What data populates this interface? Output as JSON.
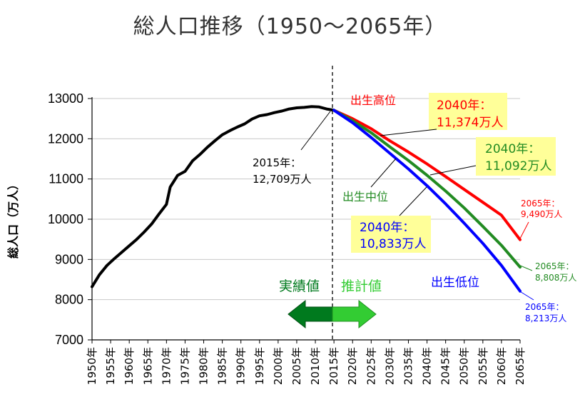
{
  "title": "総人口推移（1950～2065年）",
  "chart_data": {
    "type": "line",
    "title": "総人口推移（1950～2065年）",
    "ylabel": "総人口（万人）",
    "ylim": [
      7000,
      13000
    ],
    "yticks": [
      7000,
      8000,
      9000,
      10000,
      11000,
      12000,
      13000
    ],
    "xticks": [
      "1950年",
      "1955年",
      "1960年",
      "1965年",
      "1970年",
      "1975年",
      "1980年",
      "1985年",
      "1990年",
      "1995年",
      "2000年",
      "2005年",
      "2010年",
      "2015年",
      "2020年",
      "2025年",
      "2030年",
      "2035年",
      "2040年",
      "2045年",
      "2050年",
      "2055年",
      "2060年",
      "2065年"
    ],
    "grid": true,
    "series": [
      {
        "name": "実績値",
        "color": "#000000",
        "points": [
          [
            1950,
            8320
          ],
          [
            1952,
            8620
          ],
          [
            1954,
            8850
          ],
          [
            1956,
            9020
          ],
          [
            1958,
            9180
          ],
          [
            1960,
            9340
          ],
          [
            1962,
            9500
          ],
          [
            1964,
            9680
          ],
          [
            1966,
            9880
          ],
          [
            1968,
            10130
          ],
          [
            1970,
            10370
          ],
          [
            1971,
            10800
          ],
          [
            1973,
            11090
          ],
          [
            1975,
            11190
          ],
          [
            1977,
            11450
          ],
          [
            1979,
            11610
          ],
          [
            1981,
            11790
          ],
          [
            1983,
            11950
          ],
          [
            1985,
            12100
          ],
          [
            1987,
            12200
          ],
          [
            1989,
            12290
          ],
          [
            1991,
            12370
          ],
          [
            1993,
            12490
          ],
          [
            1995,
            12570
          ],
          [
            1997,
            12600
          ],
          [
            1999,
            12650
          ],
          [
            2001,
            12690
          ],
          [
            2003,
            12740
          ],
          [
            2005,
            12770
          ],
          [
            2007,
            12780
          ],
          [
            2009,
            12800
          ],
          [
            2011,
            12790
          ],
          [
            2013,
            12740
          ],
          [
            2015,
            12709
          ]
        ]
      },
      {
        "name": "出生高位",
        "color": "#ff0000",
        "points": [
          [
            2015,
            12709
          ],
          [
            2020,
            12500
          ],
          [
            2025,
            12250
          ],
          [
            2030,
            11950
          ],
          [
            2035,
            11670
          ],
          [
            2040,
            11374
          ],
          [
            2045,
            11060
          ],
          [
            2050,
            10740
          ],
          [
            2055,
            10420
          ],
          [
            2060,
            10100
          ],
          [
            2065,
            9490
          ]
        ]
      },
      {
        "name": "出生中位",
        "color": "#228b22",
        "points": [
          [
            2015,
            12709
          ],
          [
            2020,
            12450
          ],
          [
            2025,
            12150
          ],
          [
            2030,
            11800
          ],
          [
            2035,
            11460
          ],
          [
            2040,
            11092
          ],
          [
            2045,
            10700
          ],
          [
            2050,
            10280
          ],
          [
            2055,
            9820
          ],
          [
            2060,
            9350
          ],
          [
            2065,
            8808
          ]
        ]
      },
      {
        "name": "出生低位",
        "color": "#0000ff",
        "points": [
          [
            2015,
            12709
          ],
          [
            2020,
            12400
          ],
          [
            2025,
            12030
          ],
          [
            2030,
            11640
          ],
          [
            2035,
            11250
          ],
          [
            2040,
            10833
          ],
          [
            2045,
            10380
          ],
          [
            2050,
            9900
          ],
          [
            2055,
            9400
          ],
          [
            2060,
            8850
          ],
          [
            2065,
            8213
          ]
        ]
      }
    ],
    "annotations": {
      "a2015_year": "2015年：",
      "a2015_value": "12,709万人",
      "high_label": "出生高位",
      "mid_label": "出生中位",
      "low_label": "出生低位",
      "h2040_year": "2040年：",
      "h2040_value": "11,374万人",
      "m2040_year": "2040年：",
      "m2040_value": "11,092万人",
      "l2040_year": "2040年：",
      "l2040_value": "10,833万人",
      "h2065_year": "2065年：",
      "h2065_value": "9,490万人",
      "m2065_year": "2065年：",
      "m2065_value": "8,808万人",
      "l2065_year": "2065年：",
      "l2065_value": "8,213万人",
      "actual_label": "実績値",
      "projected_label": "推計値"
    },
    "colors": {
      "highlight_box": "#ffff99",
      "actual_arrow": "#007a1e",
      "projected_arrow": "#33cc33"
    }
  }
}
